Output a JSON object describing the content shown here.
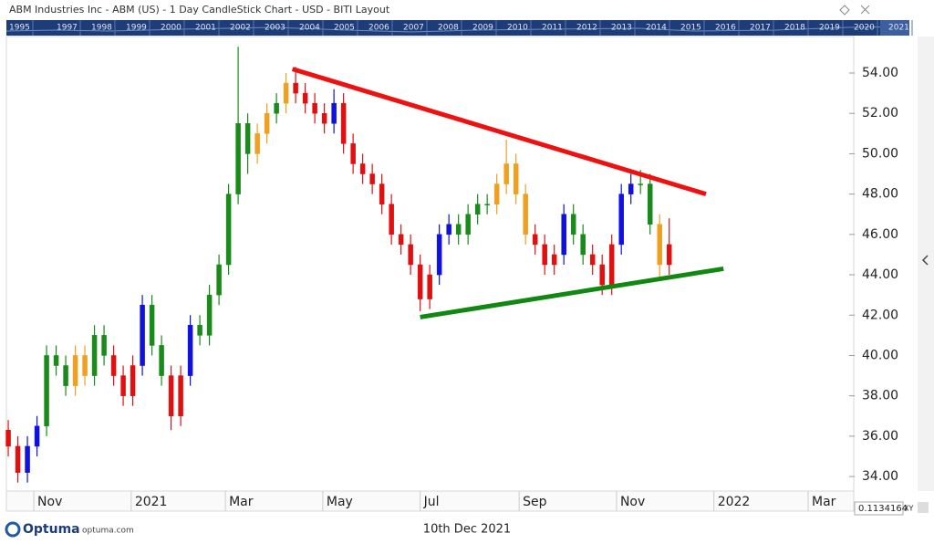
{
  "chart_data": {
    "type": "candlestick",
    "title": "ABM Industries Inc - ABM (US) - 1 Day CandleStick Chart - USD - BITI Layout",
    "x": [
      -16,
      -10,
      -4,
      2,
      8,
      14,
      20,
      26,
      32,
      38,
      44,
      50,
      56,
      62,
      68,
      74,
      80,
      86,
      92,
      98,
      104,
      110,
      116,
      122,
      128,
      134,
      140,
      146,
      152,
      158,
      164,
      170,
      176,
      182,
      188,
      194,
      200,
      206,
      212,
      218,
      224,
      230,
      236,
      242,
      248,
      254,
      260,
      266,
      272,
      278,
      284,
      290,
      296,
      302,
      308,
      314,
      320,
      326,
      332,
      338,
      344,
      350,
      356,
      362,
      368,
      374,
      380,
      386,
      392,
      398
    ],
    "open": [
      36.3,
      35.5,
      34.2,
      35.5,
      36.5,
      40,
      39.5,
      38.5,
      40,
      39,
      41,
      40,
      39,
      38,
      39.5,
      42.5,
      40.5,
      39,
      37,
      39,
      41.5,
      41,
      43,
      44.5,
      48,
      51.5,
      50,
      51,
      52,
      52.5,
      53.5,
      53,
      52.5,
      52,
      51.5,
      52.5,
      50.5,
      49.5,
      49,
      48.5,
      47.5,
      46,
      45.5,
      44.5,
      42.8,
      44,
      46,
      46.5,
      46,
      47,
      47.5,
      47.5,
      48.5,
      49.5,
      48,
      46,
      45.5,
      44.5,
      45,
      47,
      46,
      45,
      44.5,
      43.5,
      45.5,
      48,
      48.5,
      48.5,
      46.5,
      44.5
    ],
    "high": [
      36.8,
      36,
      36,
      37,
      40.5,
      40.5,
      40,
      40.5,
      40.5,
      41.5,
      41.5,
      40.5,
      39.5,
      40,
      43,
      43,
      41,
      39.5,
      39.5,
      42,
      42,
      43.5,
      45,
      48.5,
      55.3,
      52,
      51.5,
      52.5,
      53,
      54,
      54.3,
      53.5,
      53,
      52.5,
      53.2,
      53,
      51,
      50,
      49.5,
      49,
      48,
      46.5,
      46,
      45,
      44.5,
      46.5,
      47,
      47,
      47.5,
      48,
      48,
      49,
      50.7,
      50,
      48.5,
      46.5,
      46,
      45.5,
      47.5,
      47.5,
      46.5,
      45.5,
      45,
      46,
      48.5,
      49,
      49.2,
      49,
      47,
      46.8
    ],
    "low": [
      35,
      33.7,
      33.7,
      35,
      36,
      39,
      38,
      38,
      38.5,
      38.5,
      39.5,
      38.5,
      37.5,
      37.5,
      39,
      40,
      38.5,
      36.3,
      36.5,
      38.5,
      40.5,
      40.5,
      42.5,
      44,
      47.5,
      49,
      49.5,
      50.5,
      51.5,
      52,
      52.5,
      52,
      51.5,
      51,
      51,
      50,
      49,
      48.5,
      48,
      47,
      45.5,
      45,
      44,
      42.2,
      42.3,
      43.5,
      45.5,
      45.5,
      45.5,
      46.5,
      47,
      47,
      48,
      47.5,
      45.5,
      45,
      44,
      44,
      44.5,
      45.5,
      44.5,
      44,
      43,
      43,
      45,
      47.5,
      48,
      46,
      43.8,
      44
    ],
    "close": [
      35.5,
      34.2,
      35.5,
      36.5,
      40,
      39.5,
      38.5,
      40,
      39,
      41,
      40,
      39,
      38,
      39.5,
      42.5,
      40.5,
      39,
      37,
      39,
      41.5,
      41,
      43,
      44.5,
      48,
      51.5,
      50,
      51,
      52,
      52.5,
      53.5,
      53,
      52.5,
      52,
      51.5,
      52.5,
      50.5,
      49.5,
      49,
      48.5,
      47.5,
      46,
      45.5,
      44.5,
      42.8,
      44,
      46,
      46.5,
      46,
      47,
      47.5,
      47.5,
      48.5,
      49.5,
      48,
      46,
      45.5,
      44.5,
      45,
      47,
      46,
      45,
      44.5,
      43.5,
      45.5,
      48,
      48.5,
      48.5,
      46.5,
      44.5,
      45.5
    ],
    "colors": [
      "#e01010",
      "#e01010",
      "#1010e0",
      "#1010e0",
      "#1a8a1a",
      "#1a8a1a",
      "#1a8a1a",
      "#f0a020",
      "#f0a020",
      "#1a8a1a",
      "#1a8a1a",
      "#e01010",
      "#e01010",
      "#e01010",
      "#1010e0",
      "#1a8a1a",
      "#1a8a1a",
      "#e01010",
      "#e01010",
      "#1010e0",
      "#1a8a1a",
      "#1a8a1a",
      "#1a8a1a",
      "#1a8a1a",
      "#1a8a1a",
      "#1a8a1a",
      "#f0a020",
      "#f0a020",
      "#1a8a1a",
      "#f0a020",
      "#e01010",
      "#e01010",
      "#e01010",
      "#e01010",
      "#1010e0",
      "#e01010",
      "#e01010",
      "#e01010",
      "#e01010",
      "#e01010",
      "#e01010",
      "#e01010",
      "#e01010",
      "#e01010",
      "#e01010",
      "#1010e0",
      "#1010e0",
      "#1a8a1a",
      "#1a8a1a",
      "#1a8a1a",
      "#1a8a1a",
      "#f0a020",
      "#f0a020",
      "#f0a020",
      "#f0a020",
      "#e01010",
      "#e01010",
      "#e01010",
      "#1010e0",
      "#1a8a1a",
      "#1a8a1a",
      "#e01010",
      "#e01010",
      "#e01010",
      "#1010e0",
      "#1010e0",
      "#1a8a1a",
      "#1a8a1a",
      "#f0a020",
      "#e01010"
    ],
    "trendlines": [
      {
        "color": "#ee1111",
        "x": [
          162,
          421
        ],
        "y": [
          54.2,
          48.0
        ]
      },
      {
        "color": "#118811",
        "x": [
          242,
          432
        ],
        "y": [
          41.9,
          44.3
        ]
      }
    ],
    "xlim": [
      -16.6,
      513
    ],
    "ylim": [
      33.28,
      55.81
    ],
    "xticks": [
      {
        "value": 0,
        "label": "Nov"
      },
      {
        "value": 61,
        "label": "2021"
      },
      {
        "value": 120,
        "label": "Mar"
      },
      {
        "value": 181,
        "label": "May"
      },
      {
        "value": 242,
        "label": "Jul"
      },
      {
        "value": 304,
        "label": "Sep"
      },
      {
        "value": 365,
        "label": "Nov"
      },
      {
        "value": 426,
        "label": "2022"
      },
      {
        "value": 485,
        "label": "Mar"
      }
    ],
    "yticks": [
      {
        "value": 34,
        "label": "34.00"
      },
      {
        "value": 36,
        "label": "36.00"
      },
      {
        "value": 38,
        "label": "38.00"
      },
      {
        "value": 40,
        "label": "40.00"
      },
      {
        "value": 42,
        "label": "42.00"
      },
      {
        "value": 44,
        "label": "44.00"
      },
      {
        "value": 46,
        "label": "46.00"
      },
      {
        "value": 48,
        "label": "48.00"
      },
      {
        "value": 50,
        "label": "50.00"
      },
      {
        "value": 52,
        "label": "52.00"
      },
      {
        "value": 54,
        "label": "54.00"
      }
    ]
  },
  "timeline": [
    "1995",
    "1997",
    "1998",
    "1999",
    "2000",
    "2001",
    "2002",
    "2003",
    "2004",
    "2005",
    "2006",
    "2007",
    "2008",
    "2009",
    "2010",
    "2011",
    "2012",
    "2013",
    "2014",
    "2015",
    "2016",
    "2017",
    "2018",
    "2019",
    "2020",
    "2021"
  ],
  "footer": {
    "logo": "Optuma",
    "site": "optuma.com",
    "date": "10th Dec 2021",
    "readout": "0.1134164",
    "mode": "XY"
  }
}
